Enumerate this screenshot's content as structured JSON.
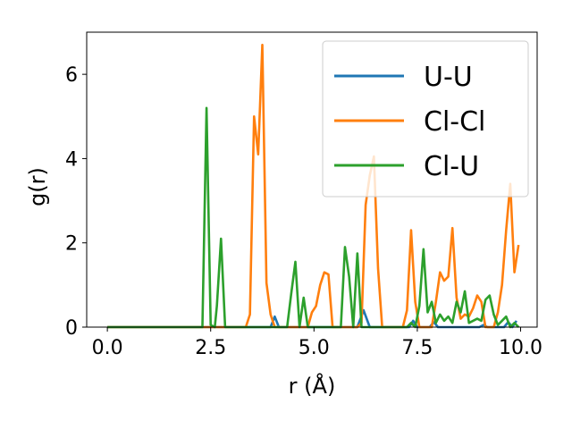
{
  "chart_data": {
    "type": "line",
    "xlabel": "r (Å)",
    "ylabel": "g(r)",
    "xlim": [
      -0.5,
      10.4
    ],
    "ylim": [
      0,
      7.0
    ],
    "xticks": [
      0.0,
      2.5,
      5.0,
      7.5,
      10.0
    ],
    "xtick_labels": [
      "0.0",
      "2.5",
      "5.0",
      "7.5",
      "10.0"
    ],
    "yticks": [
      0,
      2,
      4,
      6
    ],
    "ytick_labels": [
      "0",
      "2",
      "4",
      "6"
    ],
    "grid": false,
    "legend": "top-right",
    "series": [
      {
        "name": "U-U",
        "color": "#1f77b4",
        "points": [
          [
            0,
            0
          ],
          [
            3.95,
            0
          ],
          [
            4.05,
            0.25
          ],
          [
            4.15,
            0
          ],
          [
            6.05,
            0
          ],
          [
            6.2,
            0.4
          ],
          [
            6.35,
            0
          ],
          [
            7.3,
            0
          ],
          [
            7.4,
            0.15
          ],
          [
            7.5,
            0
          ],
          [
            7.8,
            0
          ],
          [
            7.9,
            0.12
          ],
          [
            8.0,
            0
          ],
          [
            9.0,
            0
          ],
          [
            9.1,
            0.05
          ],
          [
            9.2,
            0
          ],
          [
            9.6,
            0
          ],
          [
            9.7,
            0.12
          ],
          [
            9.8,
            0
          ],
          [
            9.9,
            0.15
          ]
        ]
      },
      {
        "name": "Cl-Cl",
        "color": "#ff7f0e",
        "points": [
          [
            0,
            0
          ],
          [
            3.35,
            0
          ],
          [
            3.45,
            0.3
          ],
          [
            3.55,
            5.0
          ],
          [
            3.65,
            4.1
          ],
          [
            3.75,
            6.7
          ],
          [
            3.85,
            1.05
          ],
          [
            3.95,
            0.3
          ],
          [
            4.05,
            0
          ],
          [
            4.85,
            0
          ],
          [
            4.95,
            0.35
          ],
          [
            5.05,
            0.5
          ],
          [
            5.15,
            1.0
          ],
          [
            5.25,
            1.3
          ],
          [
            5.35,
            1.25
          ],
          [
            5.45,
            0
          ],
          [
            6.05,
            0
          ],
          [
            6.15,
            0.1
          ],
          [
            6.25,
            2.9
          ],
          [
            6.35,
            3.6
          ],
          [
            6.45,
            4.05
          ],
          [
            6.55,
            1.4
          ],
          [
            6.65,
            0
          ],
          [
            7.15,
            0
          ],
          [
            7.25,
            0.4
          ],
          [
            7.35,
            2.3
          ],
          [
            7.45,
            0.6
          ],
          [
            7.55,
            0
          ],
          [
            7.85,
            0
          ],
          [
            7.95,
            0.6
          ],
          [
            8.05,
            1.3
          ],
          [
            8.15,
            1.1
          ],
          [
            8.25,
            1.2
          ],
          [
            8.35,
            2.35
          ],
          [
            8.45,
            0.7
          ],
          [
            8.55,
            0.2
          ],
          [
            8.65,
            0.3
          ],
          [
            8.75,
            0.25
          ],
          [
            8.85,
            0.45
          ],
          [
            8.95,
            0.75
          ],
          [
            9.05,
            0.6
          ],
          [
            9.15,
            0
          ],
          [
            9.35,
            0
          ],
          [
            9.45,
            0.35
          ],
          [
            9.55,
            1.0
          ],
          [
            9.65,
            2.3
          ],
          [
            9.75,
            3.4
          ],
          [
            9.85,
            1.3
          ],
          [
            9.95,
            1.95
          ]
        ]
      },
      {
        "name": "Cl-U",
        "color": "#2ca02c",
        "points": [
          [
            0,
            0
          ],
          [
            2.3,
            0
          ],
          [
            2.4,
            5.2
          ],
          [
            2.5,
            0.05
          ],
          [
            2.6,
            0
          ],
          [
            2.65,
            0.5
          ],
          [
            2.75,
            2.1
          ],
          [
            2.85,
            0
          ],
          [
            4.35,
            0
          ],
          [
            4.45,
            0.8
          ],
          [
            4.55,
            1.55
          ],
          [
            4.65,
            0
          ],
          [
            4.75,
            0.7
          ],
          [
            4.85,
            0
          ],
          [
            5.65,
            0
          ],
          [
            5.75,
            1.9
          ],
          [
            5.85,
            1.2
          ],
          [
            5.95,
            0
          ],
          [
            6.05,
            1.75
          ],
          [
            6.15,
            0
          ],
          [
            7.25,
            0
          ],
          [
            7.35,
            0.1
          ],
          [
            7.45,
            0
          ],
          [
            7.55,
            0.5
          ],
          [
            7.65,
            1.85
          ],
          [
            7.75,
            0.35
          ],
          [
            7.85,
            0.6
          ],
          [
            7.95,
            0.1
          ],
          [
            8.05,
            0.3
          ],
          [
            8.15,
            0.15
          ],
          [
            8.25,
            0.25
          ],
          [
            8.35,
            0.1
          ],
          [
            8.45,
            0.6
          ],
          [
            8.55,
            0.35
          ],
          [
            8.65,
            0.85
          ],
          [
            8.75,
            0.1
          ],
          [
            8.85,
            0.15
          ],
          [
            8.95,
            0.2
          ],
          [
            9.05,
            0.15
          ],
          [
            9.15,
            0.65
          ],
          [
            9.25,
            0.75
          ],
          [
            9.35,
            0.3
          ],
          [
            9.45,
            0.05
          ],
          [
            9.55,
            0.15
          ],
          [
            9.65,
            0.25
          ],
          [
            9.75,
            0
          ],
          [
            9.85,
            0.1
          ],
          [
            9.95,
            0
          ]
        ]
      }
    ]
  }
}
